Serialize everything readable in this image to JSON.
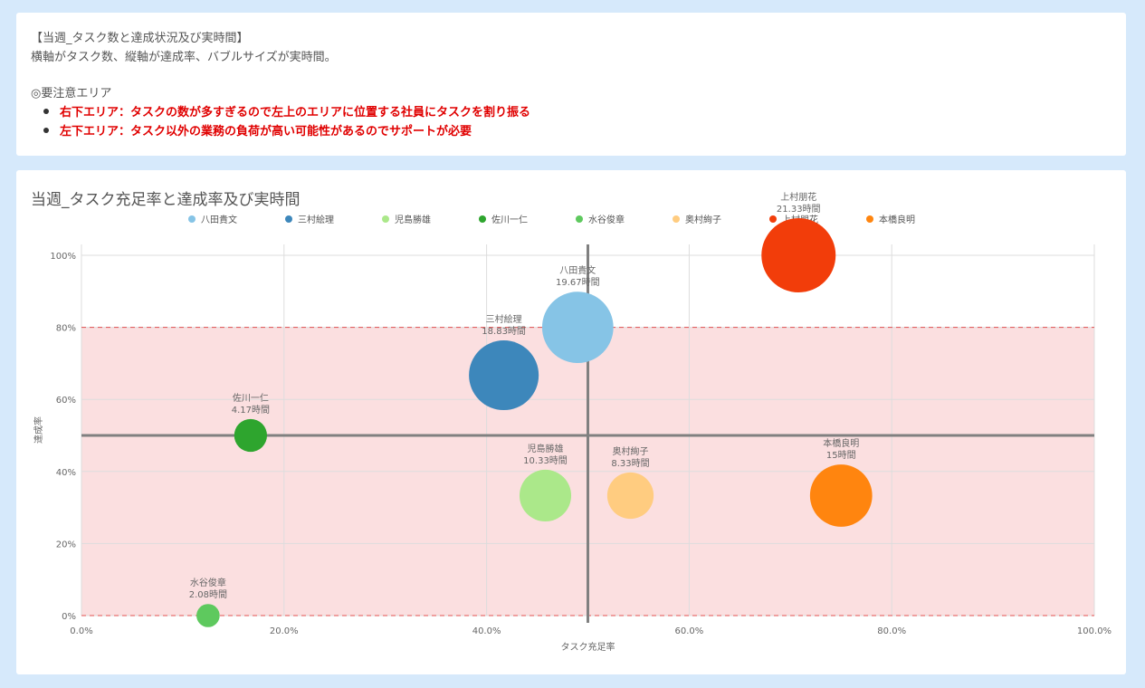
{
  "notes": {
    "title": "【当週_タスク数と達成状況及び実時間】",
    "description": "横軸がタスク数、縦軸が達成率、バブルサイズが実時間。",
    "caution_heading": "◎要注意エリア",
    "bullets": [
      "右下エリア：タスクの数が多すぎるので左上のエリアに位置する社員にタスクを割り振る",
      "左下エリア：タスク以外の業務の負荷が高い可能性があるのでサポートが必要"
    ]
  },
  "chart_data": {
    "type": "scatter",
    "title": "当週_タスク充足率と達成率及び実時間",
    "xlabel": "タスク充足率",
    "ylabel": "達成率",
    "xlim": [
      0,
      100
    ],
    "ylim": [
      0,
      100
    ],
    "x_ticks": [
      "0.0%",
      "20.0%",
      "40.0%",
      "60.0%",
      "80.0%",
      "100.0%"
    ],
    "y_ticks": [
      "0%",
      "20%",
      "40%",
      "60%",
      "80%",
      "100%"
    ],
    "grid": true,
    "legend_position": "top",
    "reference_lines": {
      "x": 50,
      "y": 50
    },
    "shaded_band": {
      "y_from": 0,
      "y_to": 80,
      "color": "#fbdfe0",
      "border_color": "#e05050"
    },
    "series": [
      {
        "name": "八田貴文",
        "x": 49,
        "y": 80,
        "hours": 19.67,
        "label": "八田貴文",
        "sublabel": "19.67時間",
        "color": "#86c4e6"
      },
      {
        "name": "三村絵理",
        "x": 41.7,
        "y": 66.7,
        "hours": 18.83,
        "label": "三村絵理",
        "sublabel": "18.83時間",
        "color": "#3d87bb"
      },
      {
        "name": "児島勝雄",
        "x": 45.8,
        "y": 33.3,
        "hours": 10.33,
        "label": "児島勝雄",
        "sublabel": "10.33時間",
        "color": "#abe88a"
      },
      {
        "name": "佐川一仁",
        "x": 16.7,
        "y": 50,
        "hours": 4.17,
        "label": "佐川一仁",
        "sublabel": "4.17時間",
        "color": "#2ea52e"
      },
      {
        "name": "水谷俊章",
        "x": 12.5,
        "y": 0,
        "hours": 2.08,
        "label": "水谷俊章",
        "sublabel": "2.08時間",
        "color": "#5ec95e"
      },
      {
        "name": "奥村絢子",
        "x": 54.2,
        "y": 33.3,
        "hours": 8.33,
        "label": "奥村絢子",
        "sublabel": "8.33時間",
        "color": "#ffcc80"
      },
      {
        "name": "上村朋花",
        "x": 70.8,
        "y": 100,
        "hours": 21.33,
        "label": "上村朋花",
        "sublabel": "21.33時間",
        "color": "#f23d0a"
      },
      {
        "name": "本橋良明",
        "x": 75,
        "y": 33.3,
        "hours": 15,
        "label": "本橋良明",
        "sublabel": "15時間",
        "color": "#ff850f"
      }
    ]
  }
}
